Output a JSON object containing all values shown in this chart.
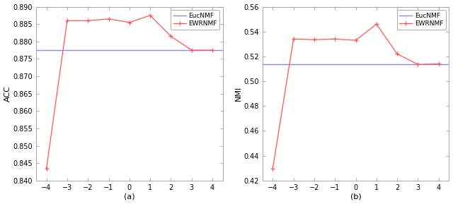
{
  "x": [
    -4,
    -3,
    -2,
    -1,
    0,
    1,
    2,
    3,
    4
  ],
  "acc_ewrnmf": [
    0.8435,
    0.886,
    0.886,
    0.8865,
    0.8855,
    0.8875,
    0.8815,
    0.8775,
    0.8775
  ],
  "acc_eucnmf": 0.8775,
  "nmi_ewrnmf": [
    0.4295,
    0.534,
    0.5335,
    0.534,
    0.533,
    0.546,
    0.522,
    0.5135,
    0.514
  ],
  "nmi_eucnmf": 0.5135,
  "acc_ylim": [
    0.84,
    0.89
  ],
  "nmi_ylim": [
    0.42,
    0.56
  ],
  "acc_yticks": [
    0.84,
    0.845,
    0.85,
    0.855,
    0.86,
    0.865,
    0.87,
    0.875,
    0.88,
    0.885,
    0.89
  ],
  "nmi_yticks": [
    0.42,
    0.44,
    0.46,
    0.48,
    0.5,
    0.52,
    0.54,
    0.56
  ],
  "xticks": [
    -4,
    -3,
    -2,
    -1,
    0,
    1,
    2,
    3,
    4
  ],
  "xlabel_a": "(a)",
  "xlabel_b": "(b)",
  "ylabel_a": "ACC",
  "ylabel_b": "NMI",
  "legend_eucnmf": "EucNMF",
  "legend_ewrnmf": "EWRNMF",
  "line_color_eucnmf": "#8888ff",
  "line_color_ewrnmf": "#ff5555",
  "spine_color": "#aaaaaa",
  "bg_color": "#ffffff"
}
